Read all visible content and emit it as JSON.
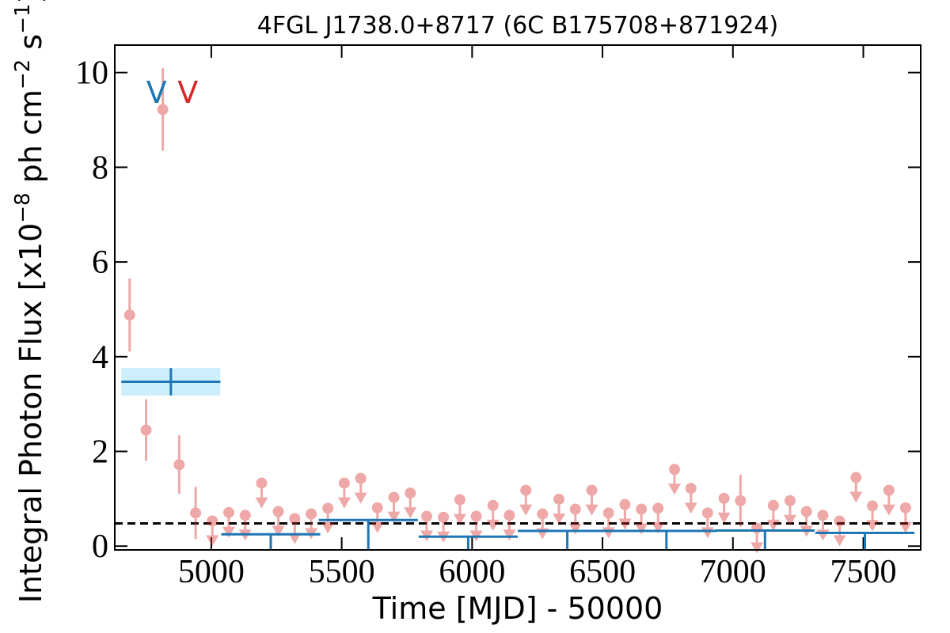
{
  "chart_data": {
    "type": "lightcurve",
    "title": "4FGL J1738.0+8717 (6C B175708+871924)",
    "xlabel": "Time [MJD] - 50000",
    "ylabel": [
      "Integral Photon Flux [x10",
      "−8",
      " ph cm",
      "−2",
      " s",
      "−1",
      "]"
    ],
    "xlim": [
      4630,
      7720
    ],
    "ylim": [
      -0.08,
      10.58
    ],
    "xticks": [
      5000,
      5500,
      6000,
      6500,
      7000,
      7500
    ],
    "yticks": [
      0,
      2,
      4,
      6,
      8,
      10
    ],
    "reference_line": {
      "value": 0.48,
      "color": "#000000"
    },
    "annotations": [
      {
        "text": "V",
        "color": "#1f77b4",
        "x": 4790
      },
      {
        "text": "V",
        "color": "#d62728",
        "x": 4910
      }
    ],
    "series": [
      {
        "kind": "points",
        "color": "#d62728",
        "x": [
          4687,
          4750,
          4814,
          4877,
          4940,
          5004,
          5067,
          5130,
          5193,
          5257,
          5320,
          5383,
          5447,
          5510,
          5573,
          5637,
          5700,
          5763,
          5826,
          5890,
          5953,
          6016,
          6080,
          6143,
          6206,
          6270,
          6333,
          6396,
          6459,
          6523,
          6586,
          6649,
          6713,
          6776,
          6839,
          6903,
          6966,
          7029,
          7092,
          7155,
          7219,
          7282,
          7345,
          7409,
          7472,
          7535,
          7598,
          7662
        ],
        "values": [
          4.88,
          2.45,
          9.22,
          1.72,
          0.7,
          0.53,
          0.71,
          0.65,
          1.33,
          0.73,
          0.58,
          0.68,
          0.8,
          1.33,
          1.43,
          0.81,
          1.03,
          1.12,
          0.63,
          0.61,
          0.98,
          0.63,
          0.86,
          0.65,
          1.18,
          0.68,
          0.99,
          0.78,
          1.18,
          0.7,
          0.88,
          0.78,
          0.8,
          1.62,
          1.22,
          0.7,
          1.01,
          0.96,
          0.38,
          0.86,
          0.96,
          0.73,
          0.65,
          0.53,
          1.45,
          0.85,
          1.18,
          0.81
        ],
        "errors": [
          0.77,
          0.65,
          0.87,
          0.62,
          0.55,
          null,
          null,
          null,
          null,
          null,
          null,
          null,
          null,
          null,
          null,
          null,
          null,
          null,
          null,
          null,
          null,
          null,
          null,
          null,
          null,
          null,
          null,
          null,
          null,
          null,
          null,
          null,
          null,
          null,
          null,
          null,
          null,
          0.55,
          null,
          null,
          null,
          null,
          null,
          null,
          null,
          null,
          null,
          null
        ],
        "upper_limit": [
          false,
          false,
          false,
          false,
          false,
          true,
          true,
          true,
          true,
          true,
          true,
          true,
          true,
          true,
          true,
          true,
          true,
          true,
          true,
          true,
          true,
          true,
          true,
          true,
          true,
          true,
          true,
          true,
          true,
          true,
          true,
          true,
          true,
          true,
          true,
          true,
          true,
          false,
          true,
          true,
          true,
          true,
          true,
          true,
          true,
          true,
          true,
          true
        ]
      },
      {
        "kind": "blocks",
        "color": "#1f77b4",
        "band_color": "#cdeefc",
        "x": [
          4845,
          5228,
          5602,
          5985,
          6365,
          6745,
          7123,
          7506
        ],
        "half_width": [
          190,
          190,
          190,
          190,
          190,
          190,
          190,
          190
        ],
        "values": [
          3.47,
          0.25,
          0.55,
          0.2,
          0.32,
          0.32,
          0.33,
          0.28
        ],
        "errors": [
          0.29,
          null,
          null,
          null,
          null,
          null,
          null,
          null
        ],
        "upper_limit": [
          false,
          true,
          true,
          true,
          true,
          true,
          true,
          true
        ]
      }
    ]
  }
}
